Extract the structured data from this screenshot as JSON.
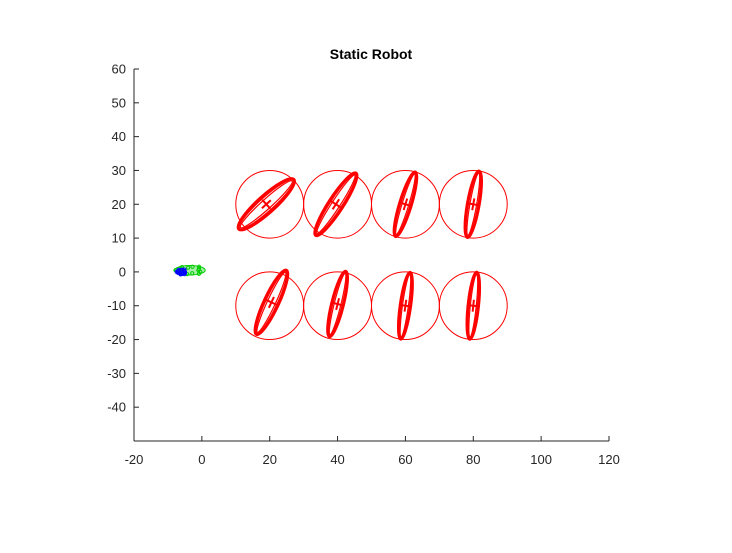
{
  "chart_data": {
    "type": "scatter",
    "title": "Static Robot",
    "xlabel": "",
    "ylabel": "",
    "xlim": [
      -20,
      120
    ],
    "ylim": [
      -50,
      60
    ],
    "xticks": [
      -20,
      0,
      20,
      40,
      60,
      80,
      100,
      120
    ],
    "yticks": [
      -40,
      -30,
      -20,
      -10,
      0,
      10,
      20,
      30,
      40,
      50,
      60
    ],
    "grid": false,
    "legend": "none",
    "series": [
      {
        "marker": "circle",
        "color": "#ff0000",
        "points": [
          {
            "x": 20,
            "y": 20,
            "radius": 10
          },
          {
            "x": 40,
            "y": 20,
            "radius": 10
          },
          {
            "x": 60,
            "y": 20,
            "radius": 10
          },
          {
            "x": 80,
            "y": 20,
            "radius": 10
          },
          {
            "x": 20,
            "y": -10,
            "radius": 10
          },
          {
            "x": 40,
            "y": -10,
            "radius": 10
          },
          {
            "x": 60,
            "y": -10,
            "radius": 10
          },
          {
            "x": 80,
            "y": -10,
            "radius": 10
          }
        ]
      },
      {
        "marker": "ellipse",
        "color": "#ff0000",
        "points": [
          {
            "x": 19,
            "y": 20,
            "a": 11,
            "b": 2.6,
            "angle": -42
          },
          {
            "x": 39.5,
            "y": 20,
            "a": 11,
            "b": 2.2,
            "angle": -57
          },
          {
            "x": 60,
            "y": 20,
            "a": 10,
            "b": 1.8,
            "angle": -73
          },
          {
            "x": 80,
            "y": 20,
            "a": 10,
            "b": 1.8,
            "angle": -80
          },
          {
            "x": 20.5,
            "y": -9,
            "a": 10.5,
            "b": 2.2,
            "angle": -65
          },
          {
            "x": 40,
            "y": -9.5,
            "a": 10,
            "b": 1.8,
            "angle": -76
          },
          {
            "x": 60,
            "y": -10,
            "a": 10,
            "b": 1.6,
            "angle": -82
          },
          {
            "x": 80,
            "y": -10,
            "a": 10,
            "b": 1.6,
            "angle": -84
          }
        ]
      },
      {
        "marker": "blob",
        "color": "#00cc00",
        "points": [
          {
            "x": -3.5,
            "y": 0.5,
            "a": 4.5,
            "b": 1.4,
            "angle": 0
          }
        ]
      },
      {
        "marker": "blob",
        "color": "#0000ff",
        "points": [
          {
            "x": -6,
            "y": 0,
            "a": 1.5,
            "b": 0.9,
            "angle": 0
          }
        ]
      }
    ]
  }
}
